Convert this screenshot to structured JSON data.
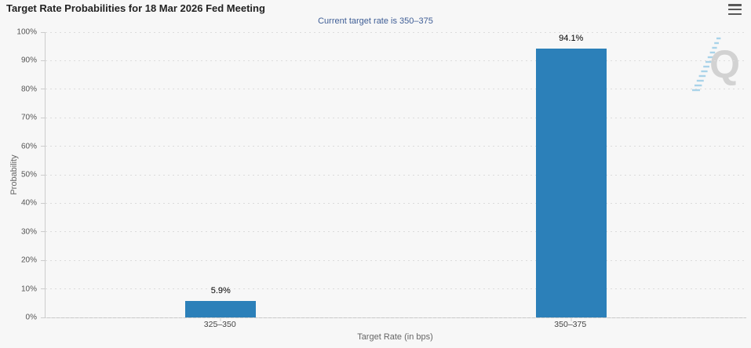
{
  "chart": {
    "watermark_letter": "Q"
  },
  "icons": {
    "menu": "hamburger-menu-icon"
  },
  "chart_data": {
    "type": "bar",
    "title": "Target Rate Probabilities for 18 Mar 2026 Fed Meeting",
    "subtitle": "Current target rate is 350–375",
    "categories": [
      "325–350",
      "350–375"
    ],
    "values": [
      5.9,
      94.1
    ],
    "data_labels": [
      "5.9%",
      "94.1%"
    ],
    "xlabel": "Target Rate (in bps)",
    "ylabel": "Probability",
    "ylim": [
      0,
      100
    ],
    "ytick_step": 10,
    "ytick_labels": [
      "0%",
      "10%",
      "20%",
      "30%",
      "40%",
      "50%",
      "60%",
      "70%",
      "80%",
      "90%",
      "100%"
    ],
    "grid": "horizontal-dotted",
    "legend_position": "none",
    "colors": {
      "bar": "#2c80b9",
      "subtitle_text": "#3f5e96",
      "axis_line": "#cccccc",
      "grid_line": "#dcdcdc",
      "watermark_letter": "#d2d2d2",
      "watermark_trail": "#a9d3e9",
      "background": "#f7f7f7"
    }
  }
}
